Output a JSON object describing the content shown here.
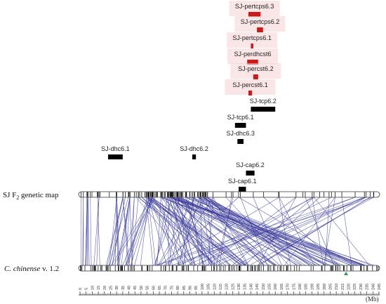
{
  "figure": {
    "genetic_map_label_prefix": "SJ F",
    "genetic_map_label_sub": "2",
    "genetic_map_label_suffix": " genetic map",
    "reference_label_italic": "C. chinense",
    "reference_label_rest": " v. 1.2",
    "axis_unit": "(Mb)"
  },
  "colors": {
    "highlight_qtl": "#cc1a1a",
    "highlight_bg": "#f6d2d2",
    "normal_qtl": "#000000",
    "synteny_line": "#3a3a9a",
    "marker_tick": "#111111",
    "green_marker": "#2a9a5a"
  },
  "qtls": [
    {
      "name": "SJ-pertcps6.3",
      "start_mb": 138,
      "end_mb": 148,
      "highlight": true
    },
    {
      "name": "SJ-pertcps6.2",
      "start_mb": 145,
      "end_mb": 150,
      "highlight": true
    },
    {
      "name": "SJ-pertcps6.1",
      "start_mb": 140,
      "end_mb": 142,
      "highlight": true
    },
    {
      "name": "SJ-perdhcst6",
      "start_mb": 137,
      "end_mb": 146,
      "highlight": true
    },
    {
      "name": "SJ-percst6.2",
      "start_mb": 142,
      "end_mb": 146,
      "highlight": true
    },
    {
      "name": "SJ-percst6.1",
      "start_mb": 138,
      "end_mb": 141,
      "highlight": true
    },
    {
      "name": "SJ-tcp6.2",
      "start_mb": 140,
      "end_mb": 160,
      "highlight": false
    },
    {
      "name": "SJ-tcp6.1",
      "start_mb": 127,
      "end_mb": 136,
      "highlight": false
    },
    {
      "name": "SJ-dhc6.3",
      "start_mb": 129,
      "end_mb": 134,
      "highlight": false
    },
    {
      "name": "SJ-dhc6.1",
      "start_mb": 23,
      "end_mb": 35,
      "highlight": false
    },
    {
      "name": "SJ-dhc6.2",
      "start_mb": 92,
      "end_mb": 95,
      "highlight": false
    },
    {
      "name": "SJ-cap6.2",
      "start_mb": 136,
      "end_mb": 143,
      "highlight": false
    },
    {
      "name": "SJ-cap6.1",
      "start_mb": 130,
      "end_mb": 136,
      "highlight": false
    }
  ],
  "axis": {
    "min_mb": 0,
    "max_mb": 245,
    "tick_step_mb": 5,
    "tick_labels": [
      "0",
      "5",
      "10",
      "15",
      "20",
      "25",
      "30",
      "35",
      "40",
      "45",
      "50",
      "55",
      "60",
      "65",
      "70",
      "75",
      "80",
      "85",
      "90",
      "95",
      "100",
      "105",
      "110",
      "115",
      "120",
      "125",
      "130",
      "135",
      "140",
      "145",
      "150",
      "155",
      "160",
      "165",
      "170",
      "175",
      "180",
      "185",
      "190",
      "195",
      "200",
      "205",
      "210",
      "215",
      "220",
      "225",
      "230",
      "235",
      "240",
      "245"
    ]
  }
}
